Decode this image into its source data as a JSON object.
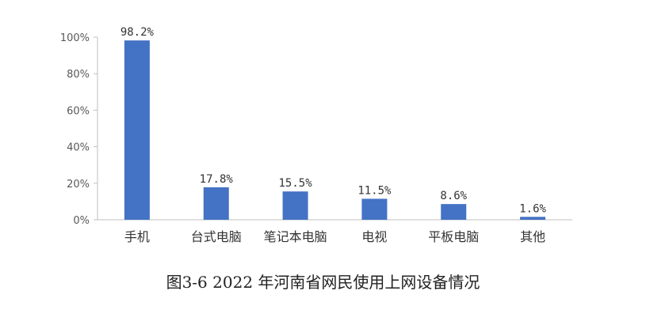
{
  "chart_data": {
    "type": "bar",
    "caption": "图3-6 2022 年河南省网民使用上网设备情况",
    "categories": [
      "手机",
      "台式电脑",
      "笔记本电脑",
      "电视",
      "平板电脑",
      "其他"
    ],
    "values": [
      98.2,
      17.8,
      15.5,
      11.5,
      8.6,
      1.6
    ],
    "data_labels": [
      "98.2%",
      "17.8%",
      "15.5%",
      "11.5%",
      "8.6%",
      "1.6%"
    ],
    "y_ticks": [
      "0%",
      "20%",
      "40%",
      "60%",
      "80%",
      "100%"
    ],
    "ylim": [
      0,
      100
    ],
    "bar_color": "#4472C4",
    "grid": false
  }
}
